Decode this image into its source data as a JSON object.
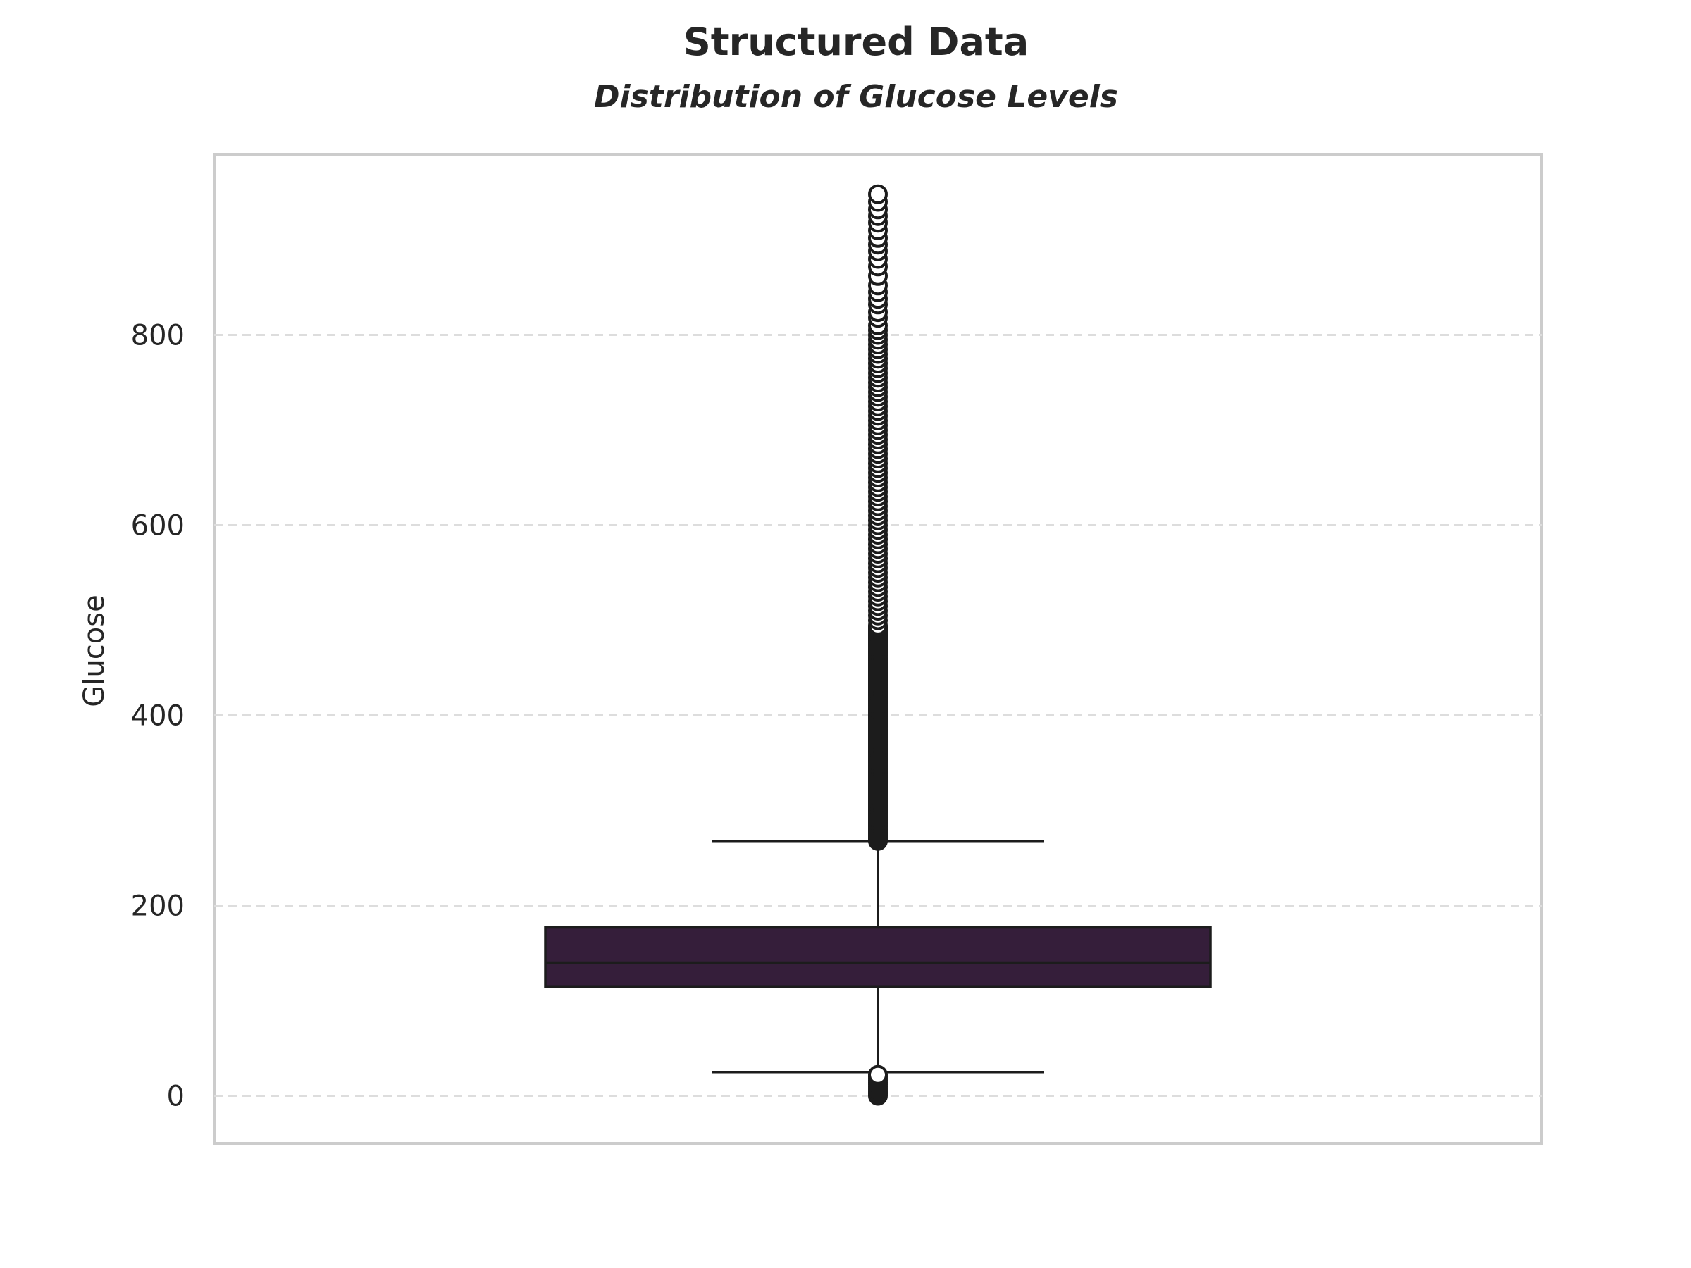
{
  "chart_data": {
    "type": "box",
    "title": "Structured Data",
    "subtitle": "Distribution of Glucose Levels",
    "xlabel": "",
    "ylabel": "Glucose",
    "ylim": [
      -50,
      990
    ],
    "yticks": [
      0,
      200,
      400,
      600,
      800
    ],
    "grid": "horizontal dashed",
    "box": {
      "q1": 115,
      "median": 140,
      "q3": 177,
      "whisker_low": 25,
      "whisker_high": 268,
      "fill_color": "#351E3A",
      "line_color": "#1c1c1c"
    },
    "outliers_low": [
      0,
      2,
      4,
      6,
      8,
      10,
      12,
      14,
      16,
      18,
      20,
      22
    ],
    "outliers_high_min": 268,
    "outliers_high_dense_max": 495,
    "outliers_high_sparse": [
      500,
      505,
      510,
      515,
      520,
      525,
      530,
      535,
      540,
      545,
      550,
      555,
      560,
      565,
      570,
      575,
      580,
      585,
      590,
      595,
      600,
      605,
      610,
      615,
      620,
      625,
      630,
      635,
      640,
      645,
      650,
      655,
      660,
      665,
      670,
      675,
      680,
      685,
      690,
      695,
      700,
      705,
      710,
      715,
      720,
      725,
      730,
      735,
      740,
      745,
      750,
      755,
      760,
      765,
      770,
      775,
      780,
      785,
      790,
      795,
      800,
      805,
      810,
      818,
      824,
      832,
      838,
      845,
      852,
      862,
      872,
      880,
      888,
      895,
      902,
      910,
      918,
      925,
      932,
      940,
      948
    ]
  }
}
